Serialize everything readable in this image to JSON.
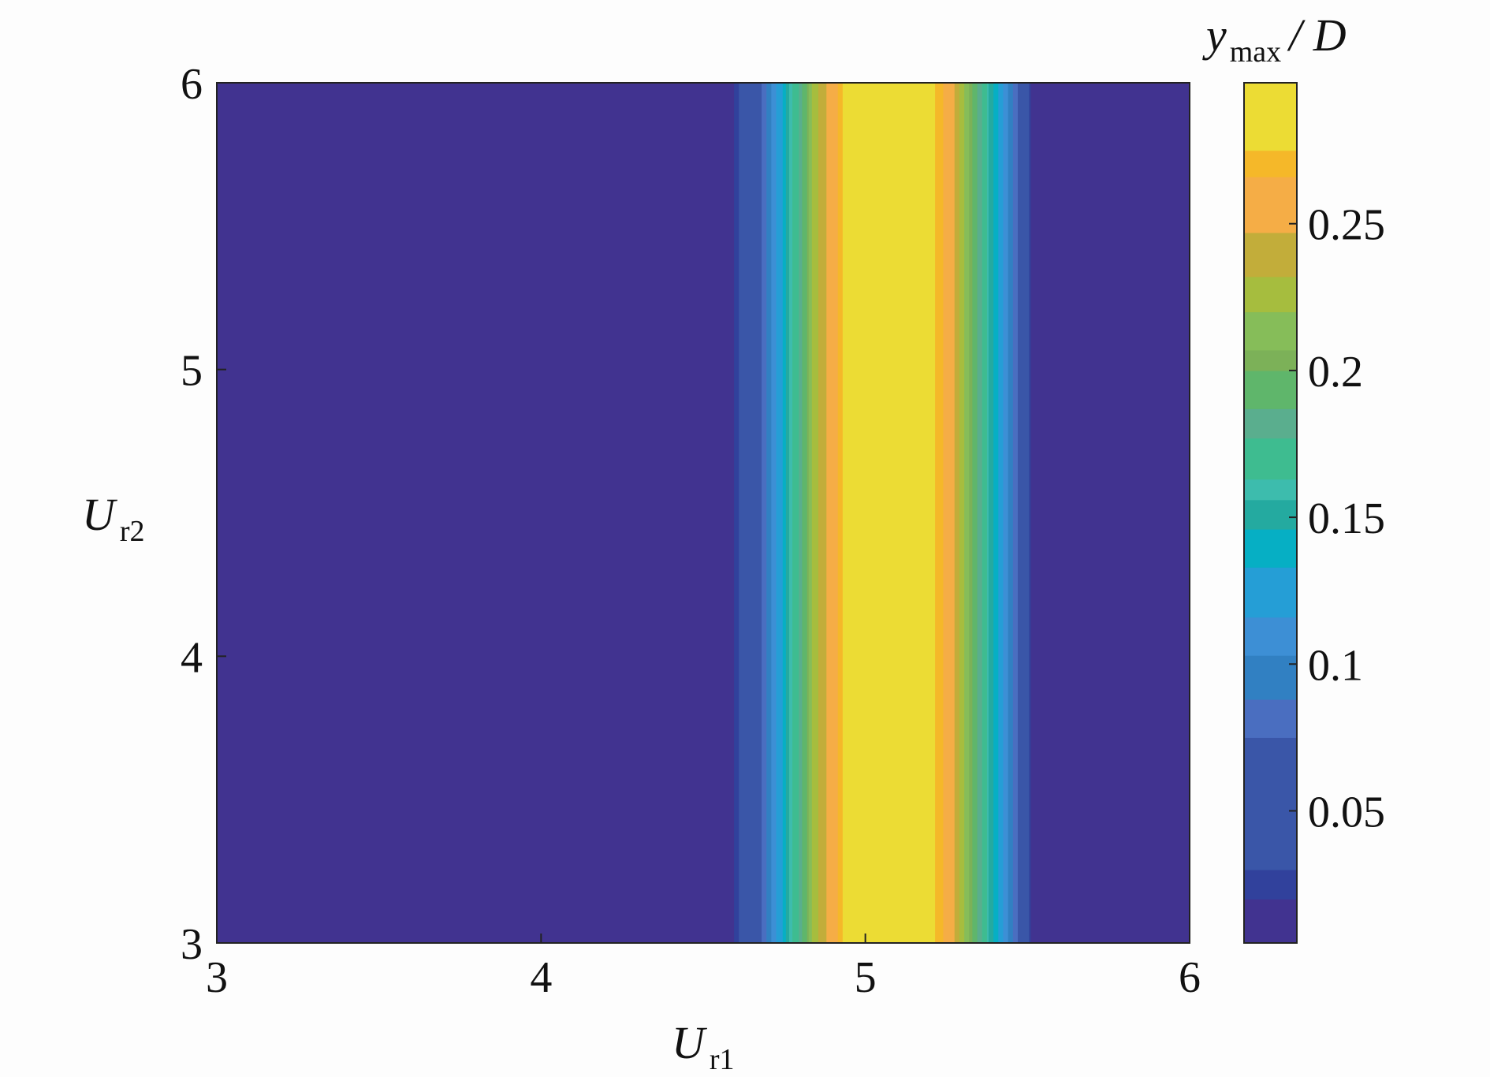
{
  "chart_data": {
    "type": "heatmap",
    "subtype": "filled-contour",
    "title": "",
    "xlabel": {
      "main": "U",
      "sub": "r1"
    },
    "ylabel": {
      "main": "U",
      "sub": "r2"
    },
    "colorbar_label": {
      "main": "y",
      "sub": "max",
      "suffix": "/ D"
    },
    "xlim": [
      3,
      6
    ],
    "ylim": [
      3,
      6
    ],
    "xticks": [
      "3",
      "4",
      "5",
      "6"
    ],
    "yticks": [
      "3",
      "4",
      "5",
      "6"
    ],
    "clim": [
      0.005,
      0.298
    ],
    "colorbar_ticks": [
      "0.05",
      "0.1",
      "0.15",
      "0.2",
      "0.25"
    ],
    "colorbar_tick_values": [
      0.05,
      0.1,
      0.15,
      0.2,
      0.25
    ],
    "colorbar_levels": [
      {
        "from": 0.005,
        "to": 0.02,
        "color": "#413390"
      },
      {
        "from": 0.02,
        "to": 0.03,
        "color": "#31419c"
      },
      {
        "from": 0.03,
        "to": 0.075,
        "color": "#3a56a8"
      },
      {
        "from": 0.075,
        "to": 0.088,
        "color": "#4a6ec0"
      },
      {
        "from": 0.088,
        "to": 0.103,
        "color": "#3180c2"
      },
      {
        "from": 0.103,
        "to": 0.116,
        "color": "#3d8fd5"
      },
      {
        "from": 0.116,
        "to": 0.133,
        "color": "#259ed6"
      },
      {
        "from": 0.133,
        "to": 0.146,
        "color": "#06afc4"
      },
      {
        "from": 0.146,
        "to": 0.156,
        "color": "#24aaa0"
      },
      {
        "from": 0.156,
        "to": 0.163,
        "color": "#3dbcad"
      },
      {
        "from": 0.163,
        "to": 0.177,
        "color": "#3ebc90"
      },
      {
        "from": 0.177,
        "to": 0.187,
        "color": "#5aae8e"
      },
      {
        "from": 0.187,
        "to": 0.2,
        "color": "#5fb66b"
      },
      {
        "from": 0.2,
        "to": 0.207,
        "color": "#7cb158"
      },
      {
        "from": 0.207,
        "to": 0.22,
        "color": "#86bd59"
      },
      {
        "from": 0.22,
        "to": 0.232,
        "color": "#a6bd3e"
      },
      {
        "from": 0.232,
        "to": 0.247,
        "color": "#c2ad3a"
      },
      {
        "from": 0.247,
        "to": 0.266,
        "color": "#f5ad46"
      },
      {
        "from": 0.266,
        "to": 0.275,
        "color": "#f5b829"
      },
      {
        "from": 0.275,
        "to": 0.298,
        "color": "#ecdc34"
      }
    ],
    "x_profile": {
      "x": [
        3.0,
        4.58,
        4.66,
        4.72,
        4.76,
        4.81,
        4.84,
        4.9,
        4.95,
        5.0,
        5.05,
        5.1,
        5.2,
        5.26,
        5.3,
        5.35,
        5.4,
        5.46,
        5.52,
        6.0
      ],
      "y_max_over_D": [
        0.01,
        0.01,
        0.06,
        0.11,
        0.15,
        0.19,
        0.225,
        0.258,
        0.285,
        0.292,
        0.294,
        0.292,
        0.282,
        0.258,
        0.225,
        0.185,
        0.14,
        0.085,
        0.01,
        0.01
      ]
    },
    "note_dependence": "values vary with U_r1 only; constant along U_r2",
    "grid": false,
    "legend": "colorbar-right"
  }
}
